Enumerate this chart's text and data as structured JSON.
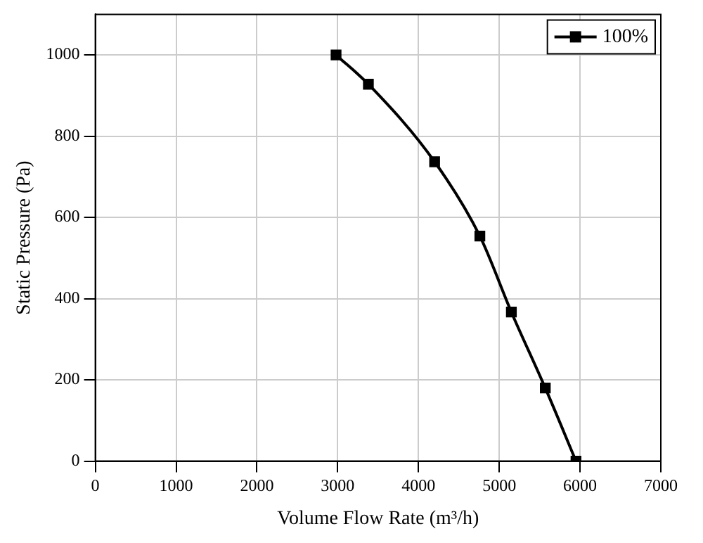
{
  "chart_data": {
    "type": "line",
    "xlabel": "Volume Flow Rate (m³/h)",
    "ylabel": "Static Pressure (Pa)",
    "x": [
      2980,
      3380,
      4200,
      4760,
      5150,
      5570,
      5950
    ],
    "series": [
      {
        "name": "100%",
        "color": "#000000",
        "values": [
          1000,
          928,
          737,
          554,
          367,
          180,
          0
        ]
      }
    ],
    "xlim": [
      0,
      7000
    ],
    "xticks": [
      0,
      1000,
      2000,
      3000,
      4000,
      5000,
      6000,
      7000
    ],
    "ylim": [
      0,
      1100
    ],
    "yticks": [
      0,
      200,
      400,
      600,
      800,
      1000
    ],
    "grid": true,
    "legend": "top right",
    "marker": "square",
    "line_style": "solid"
  }
}
